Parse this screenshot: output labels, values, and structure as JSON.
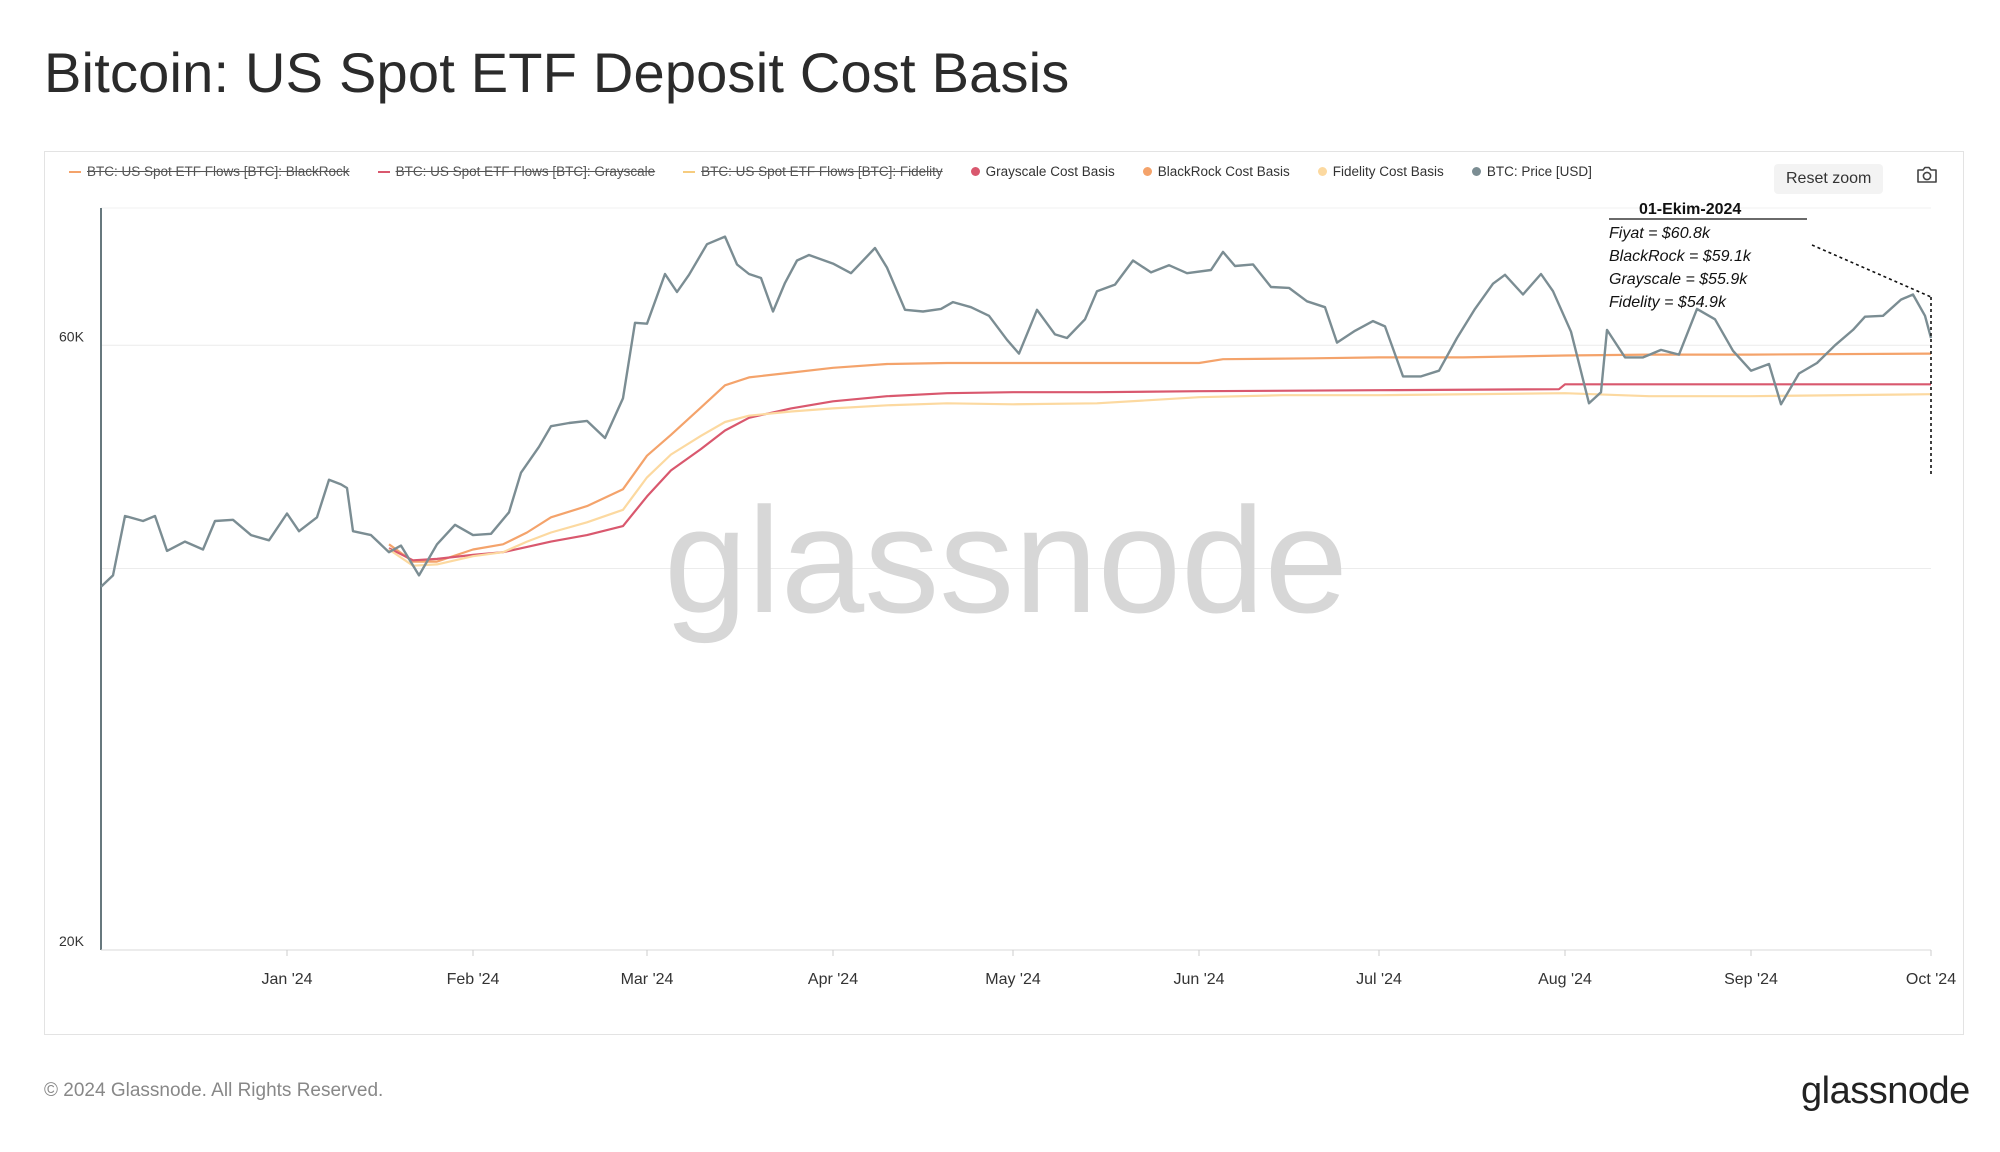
{
  "title": "Bitcoin: US Spot ETF Deposit Cost Basis",
  "legend": [
    {
      "label": "BTC: US Spot ETF Flows [BTC]: BlackRock",
      "color": "#f4a36b",
      "marker": "line",
      "disabled": true
    },
    {
      "label": "BTC: US Spot ETF Flows [BTC]: Grayscale",
      "color": "#d9586e",
      "marker": "line",
      "disabled": true
    },
    {
      "label": "BTC: US Spot ETF Flows [BTC]: Fidelity",
      "color": "#f6cc7f",
      "marker": "line",
      "disabled": true
    },
    {
      "label": "Grayscale Cost Basis",
      "color": "#d9586e",
      "marker": "dot",
      "disabled": false
    },
    {
      "label": "BlackRock Cost Basis",
      "color": "#f4a36b",
      "marker": "dot",
      "disabled": false
    },
    {
      "label": "Fidelity Cost Basis",
      "color": "#fcd9a0",
      "marker": "dot",
      "disabled": false
    },
    {
      "label": "BTC: Price [USD]",
      "color": "#7b8d93",
      "marker": "dot",
      "disabled": false
    }
  ],
  "reset_zoom_label": "Reset zoom",
  "watermark": "glassnode",
  "annotation": {
    "date": "01-Ekim-2024",
    "lines": [
      "Fiyat = $60.8k",
      "BlackRock = $59.1k",
      "Grayscale = $55.9k",
      "Fidelity = $54.9k"
    ]
  },
  "footer": {
    "copyright": "© 2024 Glassnode. All Rights Reserved.",
    "logo": "glassnode"
  },
  "chart_data": {
    "type": "line",
    "y_scale": "log",
    "ylim": [
      20000,
      77000
    ],
    "y_ticks": [
      {
        "value": 60000,
        "label": "60K"
      },
      {
        "value": 20000,
        "label": "20K"
      }
    ],
    "x_range": [
      "2023-12-01",
      "2024-10-01"
    ],
    "x_ticks": [
      {
        "date": "2024-01-01",
        "label": "Jan '24"
      },
      {
        "date": "2024-02-01",
        "label": "Feb '24"
      },
      {
        "date": "2024-03-01",
        "label": "Mar '24"
      },
      {
        "date": "2024-04-01",
        "label": "Apr '24"
      },
      {
        "date": "2024-05-01",
        "label": "May '24"
      },
      {
        "date": "2024-06-01",
        "label": "Jun '24"
      },
      {
        "date": "2024-07-01",
        "label": "Jul '24"
      },
      {
        "date": "2024-08-01",
        "label": "Aug '24"
      },
      {
        "date": "2024-09-01",
        "label": "Sep '24"
      },
      {
        "date": "2024-10-01",
        "label": "Oct '24"
      }
    ],
    "series": [
      {
        "name": "BTC: Price [USD]",
        "color": "#7b8d93",
        "points": [
          [
            "2023-12-01",
            38700
          ],
          [
            "2023-12-03",
            39500
          ],
          [
            "2023-12-05",
            44000
          ],
          [
            "2023-12-08",
            43600
          ],
          [
            "2023-12-10",
            44000
          ],
          [
            "2023-12-12",
            41300
          ],
          [
            "2023-12-15",
            42000
          ],
          [
            "2023-12-18",
            41400
          ],
          [
            "2023-12-20",
            43600
          ],
          [
            "2023-12-23",
            43700
          ],
          [
            "2023-12-26",
            42500
          ],
          [
            "2023-12-29",
            42100
          ],
          [
            "2024-01-01",
            44200
          ],
          [
            "2024-01-03",
            42800
          ],
          [
            "2024-01-06",
            43900
          ],
          [
            "2024-01-08",
            47000
          ],
          [
            "2024-01-10",
            46600
          ],
          [
            "2024-01-11",
            46300
          ],
          [
            "2024-01-12",
            42800
          ],
          [
            "2024-01-15",
            42500
          ],
          [
            "2024-01-18",
            41200
          ],
          [
            "2024-01-20",
            41700
          ],
          [
            "2024-01-23",
            39500
          ],
          [
            "2024-01-26",
            41800
          ],
          [
            "2024-01-29",
            43300
          ],
          [
            "2024-02-01",
            42500
          ],
          [
            "2024-02-04",
            42600
          ],
          [
            "2024-02-07",
            44300
          ],
          [
            "2024-02-09",
            47600
          ],
          [
            "2024-02-12",
            49900
          ],
          [
            "2024-02-14",
            51800
          ],
          [
            "2024-02-17",
            52100
          ],
          [
            "2024-02-20",
            52300
          ],
          [
            "2024-02-23",
            50700
          ],
          [
            "2024-02-26",
            54500
          ],
          [
            "2024-02-28",
            62500
          ],
          [
            "2024-03-01",
            62400
          ],
          [
            "2024-03-04",
            68300
          ],
          [
            "2024-03-06",
            66100
          ],
          [
            "2024-03-08",
            68200
          ],
          [
            "2024-03-11",
            72100
          ],
          [
            "2024-03-14",
            73100
          ],
          [
            "2024-03-16",
            69500
          ],
          [
            "2024-03-18",
            68300
          ],
          [
            "2024-03-20",
            67800
          ],
          [
            "2024-03-22",
            63800
          ],
          [
            "2024-03-24",
            67200
          ],
          [
            "2024-03-26",
            70000
          ],
          [
            "2024-03-28",
            70700
          ],
          [
            "2024-04-01",
            69600
          ],
          [
            "2024-04-04",
            68400
          ],
          [
            "2024-04-08",
            71600
          ],
          [
            "2024-04-10",
            69100
          ],
          [
            "2024-04-13",
            64000
          ],
          [
            "2024-04-16",
            63800
          ],
          [
            "2024-04-19",
            64100
          ],
          [
            "2024-04-21",
            64900
          ],
          [
            "2024-04-24",
            64300
          ],
          [
            "2024-04-27",
            63300
          ],
          [
            "2024-04-30",
            60600
          ],
          [
            "2024-05-02",
            59100
          ],
          [
            "2024-05-05",
            64000
          ],
          [
            "2024-05-08",
            61200
          ],
          [
            "2024-05-10",
            60800
          ],
          [
            "2024-05-13",
            62900
          ],
          [
            "2024-05-15",
            66200
          ],
          [
            "2024-05-18",
            67000
          ],
          [
            "2024-05-21",
            70000
          ],
          [
            "2024-05-24",
            68500
          ],
          [
            "2024-05-27",
            69400
          ],
          [
            "2024-05-30",
            68400
          ],
          [
            "2024-06-03",
            68800
          ],
          [
            "2024-06-05",
            71100
          ],
          [
            "2024-06-07",
            69300
          ],
          [
            "2024-06-10",
            69500
          ],
          [
            "2024-06-13",
            66700
          ],
          [
            "2024-06-16",
            66600
          ],
          [
            "2024-06-19",
            65000
          ],
          [
            "2024-06-22",
            64300
          ],
          [
            "2024-06-24",
            60300
          ],
          [
            "2024-06-27",
            61600
          ],
          [
            "2024-06-30",
            62700
          ],
          [
            "2024-07-02",
            62100
          ],
          [
            "2024-07-05",
            56700
          ],
          [
            "2024-07-08",
            56700
          ],
          [
            "2024-07-11",
            57300
          ],
          [
            "2024-07-14",
            60800
          ],
          [
            "2024-07-17",
            64100
          ],
          [
            "2024-07-20",
            67100
          ],
          [
            "2024-07-22",
            68200
          ],
          [
            "2024-07-25",
            65800
          ],
          [
            "2024-07-28",
            68300
          ],
          [
            "2024-07-30",
            66200
          ],
          [
            "2024-08-02",
            61500
          ],
          [
            "2024-08-05",
            54000
          ],
          [
            "2024-08-07",
            55100
          ],
          [
            "2024-08-08",
            61700
          ],
          [
            "2024-08-11",
            58700
          ],
          [
            "2024-08-14",
            58700
          ],
          [
            "2024-08-17",
            59500
          ],
          [
            "2024-08-20",
            59000
          ],
          [
            "2024-08-23",
            64100
          ],
          [
            "2024-08-26",
            62900
          ],
          [
            "2024-08-29",
            59400
          ],
          [
            "2024-09-01",
            57300
          ],
          [
            "2024-09-04",
            58000
          ],
          [
            "2024-09-06",
            53900
          ],
          [
            "2024-09-09",
            57000
          ],
          [
            "2024-09-12",
            58100
          ],
          [
            "2024-09-15",
            60000
          ],
          [
            "2024-09-18",
            61700
          ],
          [
            "2024-09-20",
            63200
          ],
          [
            "2024-09-23",
            63300
          ],
          [
            "2024-09-26",
            65200
          ],
          [
            "2024-09-28",
            65800
          ],
          [
            "2024-09-30",
            63300
          ],
          [
            "2024-10-01",
            60800
          ]
        ]
      },
      {
        "name": "BlackRock Cost Basis",
        "color": "#f4a36b",
        "points": [
          [
            "2024-01-18",
            41800
          ],
          [
            "2024-01-22",
            40500
          ],
          [
            "2024-01-26",
            40500
          ],
          [
            "2024-02-01",
            41400
          ],
          [
            "2024-02-06",
            41800
          ],
          [
            "2024-02-10",
            42700
          ],
          [
            "2024-02-14",
            43900
          ],
          [
            "2024-02-20",
            44800
          ],
          [
            "2024-02-26",
            46200
          ],
          [
            "2024-03-01",
            49100
          ],
          [
            "2024-03-05",
            51000
          ],
          [
            "2024-03-10",
            53600
          ],
          [
            "2024-03-14",
            55800
          ],
          [
            "2024-03-18",
            56600
          ],
          [
            "2024-03-25",
            57100
          ],
          [
            "2024-04-01",
            57600
          ],
          [
            "2024-04-10",
            58000
          ],
          [
            "2024-04-20",
            58100
          ],
          [
            "2024-05-01",
            58100
          ],
          [
            "2024-05-15",
            58100
          ],
          [
            "2024-06-01",
            58100
          ],
          [
            "2024-06-05",
            58500
          ],
          [
            "2024-06-20",
            58600
          ],
          [
            "2024-07-01",
            58700
          ],
          [
            "2024-07-15",
            58700
          ],
          [
            "2024-08-01",
            58900
          ],
          [
            "2024-08-15",
            59000
          ],
          [
            "2024-09-01",
            59000
          ],
          [
            "2024-10-01",
            59100
          ]
        ]
      },
      {
        "name": "Grayscale Cost Basis",
        "color": "#d9586e",
        "points": [
          [
            "2024-01-18",
            41500
          ],
          [
            "2024-01-22",
            40600
          ],
          [
            "2024-01-26",
            40700
          ],
          [
            "2024-02-01",
            41000
          ],
          [
            "2024-02-06",
            41200
          ],
          [
            "2024-02-10",
            41600
          ],
          [
            "2024-02-14",
            42000
          ],
          [
            "2024-02-20",
            42500
          ],
          [
            "2024-02-26",
            43200
          ],
          [
            "2024-03-01",
            45600
          ],
          [
            "2024-03-05",
            47800
          ],
          [
            "2024-03-10",
            49700
          ],
          [
            "2024-03-14",
            51400
          ],
          [
            "2024-03-18",
            52600
          ],
          [
            "2024-03-25",
            53500
          ],
          [
            "2024-04-01",
            54200
          ],
          [
            "2024-04-10",
            54700
          ],
          [
            "2024-04-20",
            55000
          ],
          [
            "2024-05-01",
            55100
          ],
          [
            "2024-05-15",
            55100
          ],
          [
            "2024-06-01",
            55200
          ],
          [
            "2024-07-01",
            55300
          ],
          [
            "2024-07-31",
            55400
          ],
          [
            "2024-08-01",
            55900
          ],
          [
            "2024-09-01",
            55900
          ],
          [
            "2024-10-01",
            55900
          ]
        ]
      },
      {
        "name": "Fidelity Cost Basis",
        "color": "#fcd9a0",
        "points": [
          [
            "2024-01-18",
            41400
          ],
          [
            "2024-01-22",
            40200
          ],
          [
            "2024-01-26",
            40300
          ],
          [
            "2024-02-01",
            40900
          ],
          [
            "2024-02-06",
            41200
          ],
          [
            "2024-02-10",
            42000
          ],
          [
            "2024-02-14",
            42700
          ],
          [
            "2024-02-20",
            43500
          ],
          [
            "2024-02-26",
            44500
          ],
          [
            "2024-03-01",
            47200
          ],
          [
            "2024-03-05",
            49200
          ],
          [
            "2024-03-10",
            50900
          ],
          [
            "2024-03-14",
            52200
          ],
          [
            "2024-03-18",
            52800
          ],
          [
            "2024-03-25",
            53200
          ],
          [
            "2024-04-01",
            53500
          ],
          [
            "2024-04-10",
            53800
          ],
          [
            "2024-04-20",
            54000
          ],
          [
            "2024-05-01",
            53900
          ],
          [
            "2024-05-15",
            54000
          ],
          [
            "2024-06-01",
            54600
          ],
          [
            "2024-06-15",
            54800
          ],
          [
            "2024-07-01",
            54800
          ],
          [
            "2024-08-01",
            55000
          ],
          [
            "2024-08-15",
            54700
          ],
          [
            "2024-09-01",
            54700
          ],
          [
            "2024-10-01",
            54900
          ]
        ]
      }
    ]
  }
}
